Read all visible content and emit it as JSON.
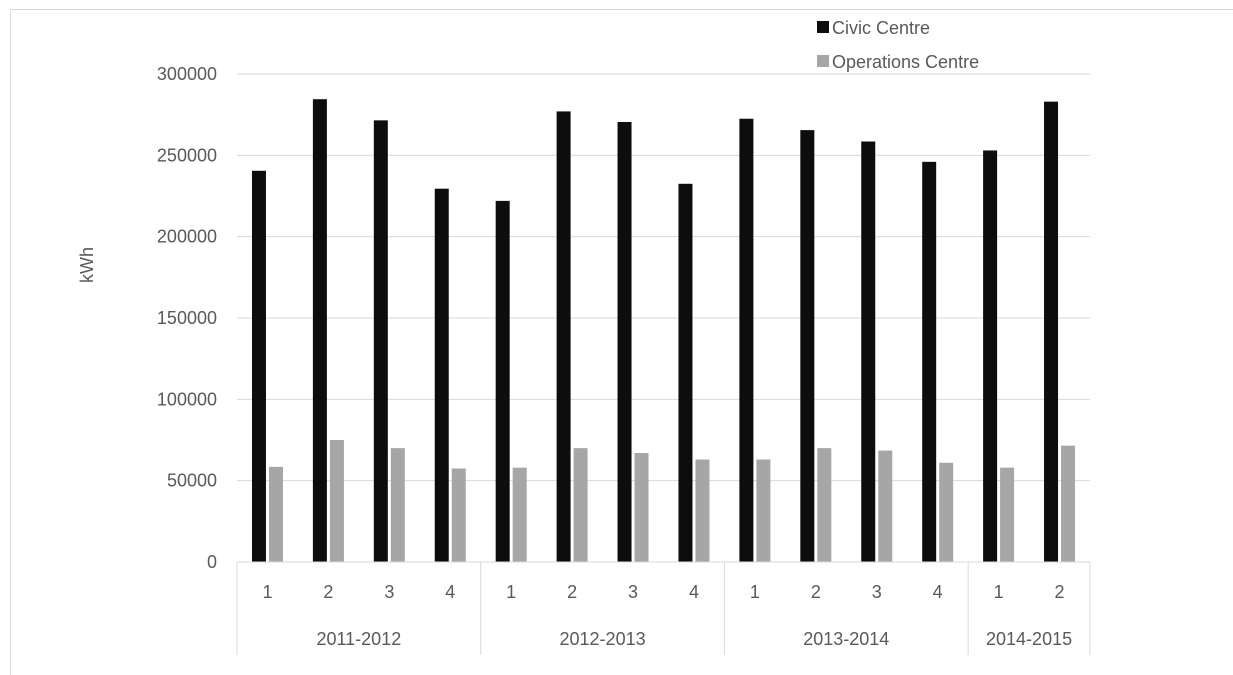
{
  "chart_data": {
    "type": "bar",
    "title": "",
    "xlabel": "",
    "ylabel": "kWh",
    "ylim": [
      0,
      300000
    ],
    "yticks": [
      0,
      50000,
      100000,
      150000,
      200000,
      250000,
      300000
    ],
    "grid": true,
    "legend_position": "top-right",
    "groups": [
      {
        "label": "2011-2012",
        "quarters": [
          "1",
          "2",
          "3",
          "4"
        ]
      },
      {
        "label": "2012-2013",
        "quarters": [
          "1",
          "2",
          "3",
          "4"
        ]
      },
      {
        "label": "2013-2014",
        "quarters": [
          "1",
          "2",
          "3",
          "4"
        ]
      },
      {
        "label": "2014-2015",
        "quarters": [
          "1",
          "2"
        ]
      }
    ],
    "categories": [
      "1",
      "2",
      "3",
      "4",
      "1",
      "2",
      "3",
      "4",
      "1",
      "2",
      "3",
      "4",
      "1",
      "2"
    ],
    "series": [
      {
        "name": "Civic Centre",
        "color": "#0d0d0d",
        "values": [
          240500,
          284500,
          271500,
          229500,
          222000,
          277000,
          270500,
          232500,
          272500,
          265500,
          258500,
          246000,
          253000,
          283000
        ]
      },
      {
        "name": "Operations Centre",
        "color": "#a6a6a6",
        "values": [
          58500,
          75000,
          70000,
          57500,
          58000,
          70000,
          67000,
          63000,
          63000,
          70000,
          68500,
          61000,
          58000,
          71500
        ]
      }
    ]
  }
}
